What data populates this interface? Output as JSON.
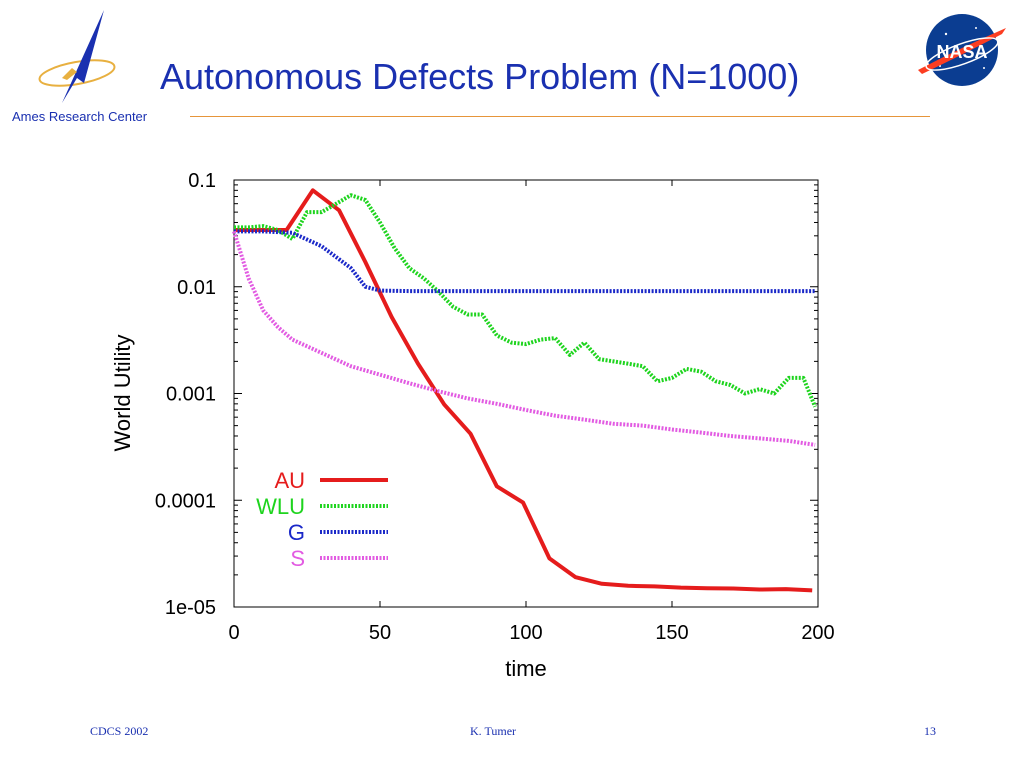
{
  "slide": {
    "title": "Autonomous Defects Problem (N=1000)",
    "ames_label": "Ames Research Center",
    "nasa_logo_text": "NASA",
    "footer_left": "CDCS 2002",
    "footer_center": "K. Tumer",
    "footer_right": "13",
    "colors": {
      "title": "#1a30b0",
      "rule": "#e6953a"
    }
  },
  "chart_data": {
    "type": "line",
    "title": "",
    "xlabel": "time",
    "ylabel": "World Utility",
    "xlim": [
      0,
      200
    ],
    "ylim": [
      1e-05,
      0.1
    ],
    "yscale": "log",
    "xticks": [
      "0",
      "50",
      "100",
      "150",
      "200"
    ],
    "xtick_values": [
      0,
      50,
      100,
      150,
      200
    ],
    "yticks": [
      "0.1",
      "0.01",
      "0.001",
      "0.0001",
      "1e-05"
    ],
    "ytick_values": [
      0.1,
      0.01,
      0.001,
      0.0001,
      1e-05
    ],
    "legend_position": "lower-left",
    "grid": false,
    "series": [
      {
        "name": "AU",
        "color": "#e51c1c",
        "style": "solid",
        "x": [
          0,
          18,
          27,
          36,
          45,
          54,
          63,
          72,
          81,
          90,
          99,
          108,
          117,
          126,
          135,
          144,
          153,
          162,
          171,
          180,
          189,
          198
        ],
        "y": [
          0.034,
          0.034,
          0.08,
          0.052,
          0.017,
          0.0052,
          0.0019,
          0.00079,
          0.00042,
          0.000135,
          9.5e-05,
          2.85e-05,
          1.9e-05,
          1.65e-05,
          1.58e-05,
          1.56e-05,
          1.52e-05,
          1.5e-05,
          1.49e-05,
          1.46e-05,
          1.47e-05,
          1.43e-05
        ]
      },
      {
        "name": "WLU",
        "color": "#1ed41e",
        "style": "dotted",
        "x": [
          0,
          5,
          10,
          15,
          20,
          25,
          30,
          35,
          40,
          45,
          50,
          55,
          60,
          65,
          70,
          75,
          80,
          85,
          90,
          95,
          100,
          105,
          110,
          115,
          120,
          125,
          130,
          135,
          140,
          145,
          150,
          155,
          160,
          165,
          170,
          175,
          180,
          185,
          190,
          195,
          199
        ],
        "y": [
          0.036,
          0.036,
          0.037,
          0.034,
          0.028,
          0.05,
          0.05,
          0.06,
          0.072,
          0.065,
          0.04,
          0.023,
          0.015,
          0.012,
          0.009,
          0.0065,
          0.0055,
          0.0055,
          0.0035,
          0.003,
          0.0029,
          0.0032,
          0.0033,
          0.0023,
          0.003,
          0.0021,
          0.002,
          0.0019,
          0.0018,
          0.0013,
          0.0014,
          0.0017,
          0.0016,
          0.0013,
          0.0012,
          0.001,
          0.0011,
          0.001,
          0.0014,
          0.0014,
          0.00075
        ]
      },
      {
        "name": "G",
        "color": "#1a28c8",
        "style": "dotted",
        "x": [
          0,
          10,
          20,
          30,
          40,
          45,
          50,
          60,
          100,
          150,
          199
        ],
        "y": [
          0.033,
          0.033,
          0.032,
          0.024,
          0.015,
          0.01,
          0.0092,
          0.0091,
          0.0091,
          0.0091,
          0.0091
        ]
      },
      {
        "name": "S",
        "color": "#e25be2",
        "style": "dotted",
        "x": [
          0,
          5,
          10,
          15,
          20,
          30,
          40,
          50,
          60,
          70,
          80,
          90,
          100,
          110,
          120,
          130,
          140,
          150,
          160,
          170,
          180,
          190,
          199
        ],
        "y": [
          0.033,
          0.012,
          0.006,
          0.0042,
          0.0032,
          0.0024,
          0.0018,
          0.0015,
          0.00125,
          0.00105,
          0.0009,
          0.0008,
          0.0007,
          0.00062,
          0.00057,
          0.00052,
          0.0005,
          0.00046,
          0.00043,
          0.0004,
          0.00038,
          0.00036,
          0.00033
        ]
      }
    ]
  }
}
